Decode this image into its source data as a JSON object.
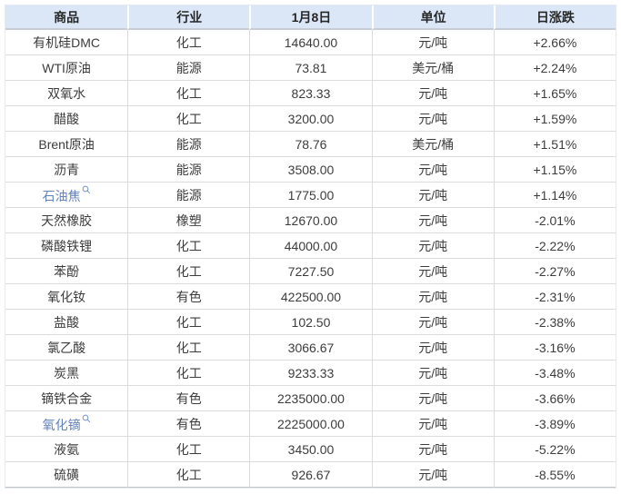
{
  "chart_data": {
    "type": "table",
    "columns": [
      "商品",
      "行业",
      "1月8日",
      "单位",
      "日涨跌"
    ],
    "column_keys": [
      "commodity",
      "industry",
      "price-jan8",
      "unit",
      "daily-change"
    ],
    "rows": [
      {
        "commodity": "有机硅DMC",
        "link": false,
        "industry": "化工",
        "price": "14640.00",
        "unit": "元/吨",
        "change": "+2.66%",
        "direction": "up"
      },
      {
        "commodity": "WTI原油",
        "link": false,
        "industry": "能源",
        "price": "73.81",
        "unit": "美元/桶",
        "change": "+2.24%",
        "direction": "up"
      },
      {
        "commodity": "双氧水",
        "link": false,
        "industry": "化工",
        "price": "823.33",
        "unit": "元/吨",
        "change": "+1.65%",
        "direction": "up"
      },
      {
        "commodity": "醋酸",
        "link": false,
        "industry": "化工",
        "price": "3200.00",
        "unit": "元/吨",
        "change": "+1.59%",
        "direction": "up"
      },
      {
        "commodity": "Brent原油",
        "link": false,
        "industry": "能源",
        "price": "78.76",
        "unit": "美元/桶",
        "change": "+1.51%",
        "direction": "up"
      },
      {
        "commodity": "沥青",
        "link": false,
        "industry": "能源",
        "price": "3508.00",
        "unit": "元/吨",
        "change": "+1.15%",
        "direction": "up"
      },
      {
        "commodity": "石油焦",
        "link": true,
        "industry": "能源",
        "price": "1775.00",
        "unit": "元/吨",
        "change": "+1.14%",
        "direction": "up"
      },
      {
        "commodity": "天然橡胶",
        "link": false,
        "industry": "橡塑",
        "price": "12670.00",
        "unit": "元/吨",
        "change": "-2.01%",
        "direction": "down"
      },
      {
        "commodity": "磷酸铁锂",
        "link": false,
        "industry": "化工",
        "price": "44000.00",
        "unit": "元/吨",
        "change": "-2.22%",
        "direction": "down"
      },
      {
        "commodity": "苯酚",
        "link": false,
        "industry": "化工",
        "price": "7227.50",
        "unit": "元/吨",
        "change": "-2.27%",
        "direction": "down"
      },
      {
        "commodity": "氧化钕",
        "link": false,
        "industry": "有色",
        "price": "422500.00",
        "unit": "元/吨",
        "change": "-2.31%",
        "direction": "down"
      },
      {
        "commodity": "盐酸",
        "link": false,
        "industry": "化工",
        "price": "102.50",
        "unit": "元/吨",
        "change": "-2.38%",
        "direction": "down"
      },
      {
        "commodity": "氯乙酸",
        "link": false,
        "industry": "化工",
        "price": "3066.67",
        "unit": "元/吨",
        "change": "-3.16%",
        "direction": "down"
      },
      {
        "commodity": "炭黑",
        "link": false,
        "industry": "化工",
        "price": "9233.33",
        "unit": "元/吨",
        "change": "-3.48%",
        "direction": "down"
      },
      {
        "commodity": "镝铁合金",
        "link": false,
        "industry": "有色",
        "price": "2235000.00",
        "unit": "元/吨",
        "change": "-3.66%",
        "direction": "down"
      },
      {
        "commodity": "氧化镝",
        "link": true,
        "industry": "有色",
        "price": "2225000.00",
        "unit": "元/吨",
        "change": "-3.89%",
        "direction": "down"
      },
      {
        "commodity": "液氨",
        "link": false,
        "industry": "化工",
        "price": "3450.00",
        "unit": "元/吨",
        "change": "-5.22%",
        "direction": "down"
      },
      {
        "commodity": "硫磺",
        "link": false,
        "industry": "化工",
        "price": "926.67",
        "unit": "元/吨",
        "change": "-8.55%",
        "direction": "down"
      }
    ]
  },
  "colors": {
    "up_red": "#f43d3d",
    "down_green": "#12a042",
    "link_blue": "#6282bb",
    "header_bg": "#dbe7f7",
    "header_text": "#262626",
    "body_text": "#3c3c3c",
    "grid_line": "#dcdcdc"
  },
  "icons": {
    "search": "magnifier"
  }
}
